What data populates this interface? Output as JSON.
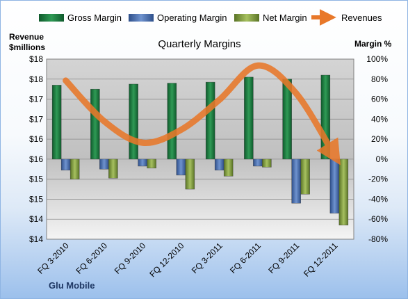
{
  "chart_data": {
    "type": "bar",
    "title": "Quarterly Margins",
    "footer": "Glu Mobile",
    "left_axis": {
      "label_line1": "Revenue",
      "label_line2": "$millions",
      "ticks": [
        "$18",
        "$18",
        "$17",
        "$17",
        "$16",
        "$16",
        "$15",
        "$15",
        "$14",
        "$14"
      ]
    },
    "right_axis": {
      "label": "Margin %",
      "ylim": [
        -80,
        100
      ],
      "ticks": [
        "100%",
        "80%",
        "60%",
        "40%",
        "20%",
        "0%",
        "-20%",
        "-40%",
        "-60%",
        "-80%"
      ]
    },
    "categories": [
      "FQ 3-2010",
      "FQ 6-2010",
      "FQ 9-2010",
      "FQ 12-2010",
      "FQ 3-2011",
      "FQ 6-2011",
      "FQ 9-2011",
      "FQ 12-2011"
    ],
    "series": [
      {
        "name": "Gross Margin",
        "color": "#1e7a40",
        "values": [
          74,
          70,
          75,
          76,
          77,
          82,
          80,
          84
        ]
      },
      {
        "name": "Operating Margin",
        "color": "#4a6fad",
        "values": [
          -11,
          -10,
          -7,
          -16,
          -11,
          -7,
          -44,
          -54
        ]
      },
      {
        "name": "Net Margin",
        "color": "#7f9a3c",
        "values": [
          -20,
          -19,
          -9,
          -30,
          -17,
          -8,
          -35,
          -66
        ]
      }
    ],
    "revenues": {
      "name": "Revenues",
      "color": "#e8782a",
      "values": [
        17.7,
        16.75,
        16.25,
        16.55,
        17.25,
        18.05,
        17.4,
        15.95
      ]
    }
  }
}
